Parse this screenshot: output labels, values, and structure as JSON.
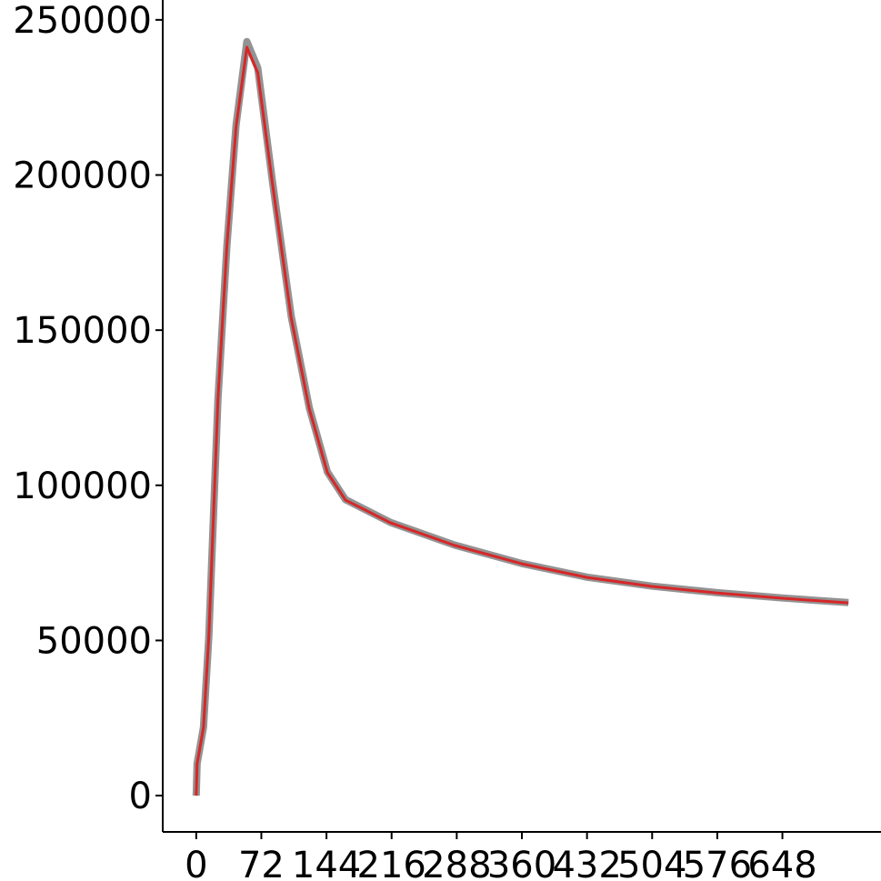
{
  "chart_data": {
    "type": "line",
    "x": [
      0,
      1,
      8,
      14,
      24,
      34,
      44,
      56,
      68,
      84,
      105,
      125,
      145,
      165,
      215,
      286,
      360,
      432,
      504,
      576,
      648,
      721
    ],
    "series": [
      {
        "color": "#808080",
        "values": [
          0,
          10300,
          22000,
          51300,
          127500,
          177300,
          216000,
          243000,
          234500,
          198500,
          154500,
          125000,
          104300,
          95400,
          88000,
          80700,
          74800,
          70400,
          67500,
          65400,
          63700,
          62200
        ]
      },
      {
        "color": "#d62728",
        "values": [
          0,
          10260,
          21980,
          51290,
          127490,
          177300,
          215400,
          241200,
          233000,
          197800,
          153900,
          124600,
          104100,
          95250,
          87900,
          80600,
          74700,
          70300,
          67400,
          65300,
          63600,
          62100
        ]
      }
    ],
    "xlim": [
      -37,
      757
    ],
    "ylim": [
      -11700,
      256400
    ],
    "xticks": [
      0,
      72,
      144,
      216,
      288,
      360,
      432,
      504,
      576,
      648
    ],
    "yticks": [
      0,
      50000,
      100000,
      150000,
      200000,
      250000
    ]
  }
}
